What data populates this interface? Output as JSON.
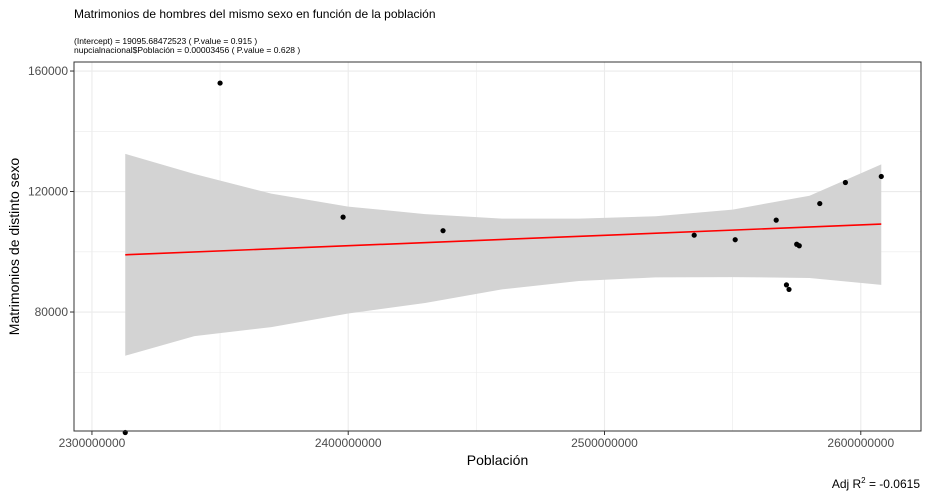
{
  "chart_data": {
    "type": "scatter",
    "title": "Matrimonios de hombres del mismo sexo en función de la población",
    "subtitle_lines": [
      "(Intercept) = 19095.68472523 ( P.value = 0.915 )",
      "nupcialnacional$Población = 0.00003456 ( P.value = 0.628 )"
    ],
    "xlabel": "Población",
    "ylabel": "Matrimonios de distinto sexo",
    "caption_prefix": "Adj R",
    "caption_sup": "2",
    "caption_value": " = -0.0615",
    "xlim": [
      2293000000,
      2623500000
    ],
    "ylim": [
      40500000,
      163000
    ],
    "x_ticks": [
      2300000000,
      2400000000,
      2500000000,
      2600000000
    ],
    "x_tick_labels": [
      "2300000000",
      "2400000000",
      "2500000000",
      "2600000000"
    ],
    "y_ticks": [
      80000,
      120000,
      160000
    ],
    "y_tick_labels": [
      "80000",
      "120000",
      "160000"
    ],
    "grid": true,
    "points": [
      {
        "x": 2313000000,
        "y": 40000
      },
      {
        "x": 2350000000,
        "y": 156000
      },
      {
        "x": 2398000000,
        "y": 111500
      },
      {
        "x": 2437000000,
        "y": 107000
      },
      {
        "x": 2535000000,
        "y": 105500
      },
      {
        "x": 2551000000,
        "y": 104000
      },
      {
        "x": 2567000000,
        "y": 110500
      },
      {
        "x": 2571000000,
        "y": 89000
      },
      {
        "x": 2572000000,
        "y": 87500
      },
      {
        "x": 2575000000,
        "y": 102500
      },
      {
        "x": 2576000000,
        "y": 102000
      },
      {
        "x": 2584000000,
        "y": 116000
      },
      {
        "x": 2594000000,
        "y": 123000
      },
      {
        "x": 2608000000,
        "y": 125000
      }
    ],
    "fit": {
      "x": [
        2313000000,
        2608000000
      ],
      "y": [
        99000,
        109200
      ],
      "color": "#ff0000"
    },
    "confidence_band": {
      "x": [
        2313000000,
        2340000000,
        2370000000,
        2400000000,
        2430000000,
        2460000000,
        2490000000,
        2520000000,
        2550000000,
        2580000000,
        2608000000
      ],
      "upper": [
        132500,
        125800,
        119300,
        115000,
        112500,
        111000,
        111000,
        111800,
        114000,
        118600,
        129000
      ],
      "lower": [
        65500,
        72000,
        75000,
        79500,
        83000,
        87500,
        90300,
        91500,
        91600,
        91300,
        89000
      ],
      "color": "#d3d3d3"
    },
    "colors": {
      "panel_border": "#333333",
      "grid": "#ebebeb",
      "point": "#000000"
    }
  }
}
